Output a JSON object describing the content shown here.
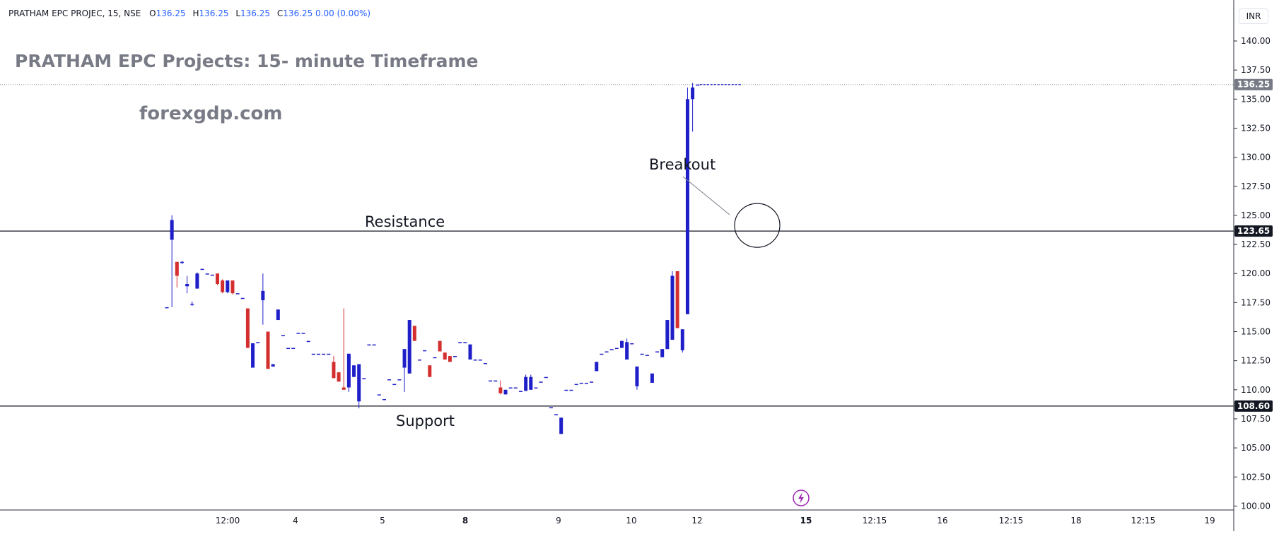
{
  "header": {
    "symbol": "PRATHAM EPC PROJEC, 15, NSE",
    "o_label": "O",
    "o_value": "136.25",
    "h_label": "H",
    "h_value": "136.25",
    "l_label": "L",
    "l_value": "136.25",
    "c_label": "C",
    "c_value": "136.25 0.00 (0.00%)"
  },
  "currency": "INR",
  "title": "PRATHAM EPC Projects: 15- minute Timeframe",
  "watermark": "forexgdp.com",
  "annotations": {
    "resistance": "Resistance",
    "support": "Support",
    "breakout": "Breakout"
  },
  "colors": {
    "up": "#1f1fc9",
    "down": "#d32f2f",
    "resistance_line": "#131722",
    "badge_bg": "#131722",
    "last_badge_bg": "#787b86",
    "circle": "#131722",
    "lightning": "#9c27b0"
  },
  "chart_data": {
    "type": "candlestick",
    "y_axis_ticks": [
      "140.00",
      "137.50",
      "135.00",
      "132.50",
      "130.00",
      "127.50",
      "125.00",
      "122.50",
      "120.00",
      "117.50",
      "115.00",
      "112.50",
      "110.00",
      "107.50",
      "105.00",
      "102.50",
      "100.00"
    ],
    "ylim": [
      100,
      141.5
    ],
    "x_axis_ticks": [
      "12:00",
      "4",
      "5",
      "8",
      "9",
      "10",
      "12",
      "15",
      "12:15",
      "16",
      "12:15",
      "18",
      "12:15",
      "19"
    ],
    "x_axis_bold": [
      "8",
      "15"
    ],
    "levels": {
      "resistance": 123.65,
      "support": 108.6,
      "last": 136.25
    },
    "price_badges": [
      "123.65",
      "108.60",
      "136.25"
    ],
    "candles": [
      [
        117.1,
        117.1,
        117.1,
        117.1
      ],
      [
        122.9,
        125.0,
        117.1,
        124.6
      ],
      [
        121.0,
        121.0,
        118.8,
        119.8
      ],
      [
        121.0,
        121.1,
        120.8,
        121.0
      ],
      [
        118.9,
        119.8,
        118.3,
        119.1
      ],
      [
        117.4,
        117.6,
        117.2,
        117.4
      ],
      [
        118.7,
        120.1,
        118.7,
        120.0
      ],
      [
        120.4,
        120.4,
        120.4,
        120.4
      ],
      [
        120.0,
        120.0,
        120.0,
        120.0
      ],
      [
        119.9,
        119.9,
        119.9,
        119.9
      ],
      [
        120.0,
        120.0,
        119.0,
        119.1
      ],
      [
        119.4,
        119.5,
        118.3,
        118.4
      ],
      [
        118.4,
        119.4,
        118.3,
        119.4
      ],
      [
        119.4,
        119.4,
        118.2,
        118.3
      ],
      [
        118.3,
        118.3,
        118.3,
        118.3
      ],
      [
        117.9,
        117.9,
        117.9,
        117.9
      ],
      [
        117.0,
        117.0,
        113.6,
        113.6
      ],
      [
        111.9,
        114.0,
        111.9,
        114.0
      ],
      [
        114.1,
        114.1,
        114.1,
        114.1
      ],
      [
        117.7,
        120.0,
        115.6,
        118.5
      ],
      [
        115.0,
        115.0,
        111.8,
        111.8
      ],
      [
        112.0,
        112.2,
        112.0,
        112.2
      ],
      [
        116.0,
        116.9,
        116.0,
        116.9
      ],
      [
        114.7,
        114.7,
        114.7,
        114.7
      ],
      [
        113.6,
        113.6,
        113.6,
        113.6
      ],
      [
        113.6,
        113.6,
        113.6,
        113.6
      ],
      [
        114.9,
        114.9,
        114.9,
        114.9
      ],
      [
        114.9,
        114.9,
        114.9,
        114.9
      ],
      [
        114.2,
        114.2,
        114.2,
        114.2
      ],
      [
        113.1,
        113.1,
        113.1,
        113.1
      ],
      [
        113.1,
        113.1,
        113.1,
        113.1
      ],
      [
        113.1,
        113.1,
        113.1,
        113.1
      ],
      [
        113.1,
        113.1,
        113.1,
        113.1
      ],
      [
        112.4,
        112.9,
        111.0,
        111.0
      ],
      [
        111.5,
        111.5,
        110.7,
        110.7
      ],
      [
        110.2,
        117.0,
        110.0,
        110.0
      ],
      [
        110.2,
        113.1,
        109.8,
        113.1
      ],
      [
        111.1,
        112.1,
        111.1,
        112.1
      ],
      [
        109.0,
        112.2,
        108.4,
        112.2
      ],
      [
        111.0,
        111.0,
        111.0,
        111.0
      ],
      [
        113.9,
        113.9,
        113.9,
        113.9
      ],
      [
        113.9,
        113.9,
        113.9,
        113.9
      ],
      [
        109.6,
        109.6,
        109.6,
        109.6
      ],
      [
        109.2,
        109.2,
        109.2,
        109.2
      ],
      [
        110.9,
        110.9,
        110.9,
        110.9
      ],
      [
        110.5,
        110.5,
        110.5,
        110.5
      ],
      [
        110.9,
        110.9,
        110.9,
        110.9
      ],
      [
        111.9,
        113.5,
        109.8,
        113.5
      ],
      [
        111.4,
        116.0,
        111.4,
        116.0
      ],
      [
        115.5,
        115.5,
        114.2,
        114.2
      ],
      [
        112.6,
        112.6,
        112.6,
        112.6
      ],
      [
        113.4,
        113.4,
        113.4,
        113.4
      ],
      [
        112.1,
        112.1,
        111.1,
        111.1
      ],
      [
        112.8,
        112.8,
        112.8,
        112.8
      ],
      [
        114.2,
        114.2,
        113.3,
        113.3
      ],
      [
        113.2,
        113.2,
        112.6,
        112.6
      ],
      [
        112.9,
        112.9,
        112.4,
        112.4
      ],
      [
        112.9,
        112.9,
        112.9,
        112.9
      ],
      [
        114.1,
        114.1,
        114.1,
        114.1
      ],
      [
        114.1,
        114.1,
        114.1,
        114.1
      ],
      [
        112.6,
        113.9,
        112.6,
        113.9
      ],
      [
        112.6,
        112.6,
        112.6,
        112.6
      ],
      [
        112.6,
        112.6,
        112.6,
        112.6
      ],
      [
        112.3,
        112.3,
        112.3,
        112.3
      ],
      [
        110.8,
        110.8,
        110.8,
        110.8
      ],
      [
        110.8,
        110.8,
        110.8,
        110.8
      ],
      [
        110.2,
        110.8,
        109.6,
        109.7
      ],
      [
        109.6,
        110.0,
        109.6,
        110.0
      ],
      [
        110.2,
        110.2,
        110.2,
        110.2
      ],
      [
        110.2,
        110.2,
        110.2,
        110.2
      ],
      [
        109.9,
        109.9,
        109.9,
        109.9
      ],
      [
        109.9,
        111.3,
        109.9,
        111.1
      ],
      [
        110.0,
        111.3,
        110.0,
        111.1
      ],
      [
        110.2,
        110.2,
        110.2,
        110.2
      ],
      [
        110.7,
        110.7,
        110.7,
        110.7
      ],
      [
        111.1,
        111.1,
        111.1,
        111.1
      ],
      [
        108.5,
        108.5,
        108.5,
        108.5
      ],
      [
        107.9,
        107.9,
        107.9,
        107.9
      ],
      [
        106.2,
        107.6,
        106.2,
        107.6
      ],
      [
        110.0,
        110.0,
        110.0,
        110.0
      ],
      [
        110.0,
        110.0,
        110.0,
        110.0
      ],
      [
        110.5,
        110.5,
        110.5,
        110.5
      ],
      [
        110.6,
        110.6,
        110.6,
        110.6
      ],
      [
        110.6,
        110.6,
        110.6,
        110.6
      ],
      [
        110.7,
        110.7,
        110.7,
        110.7
      ],
      [
        111.6,
        112.4,
        111.6,
        112.4
      ],
      [
        113.1,
        113.1,
        113.1,
        113.1
      ],
      [
        113.3,
        113.3,
        113.3,
        113.3
      ],
      [
        113.5,
        113.5,
        113.5,
        113.5
      ],
      [
        113.6,
        113.6,
        113.6,
        113.6
      ],
      [
        113.6,
        114.2,
        113.6,
        114.2
      ],
      [
        112.6,
        114.4,
        112.6,
        114.1
      ],
      [
        114.0,
        114.0,
        114.0,
        114.0
      ],
      [
        110.3,
        112.0,
        110.0,
        112.0
      ],
      [
        113.1,
        113.1,
        113.1,
        113.1
      ],
      [
        113.0,
        113.0,
        113.0,
        113.0
      ],
      [
        110.6,
        111.4,
        110.6,
        111.4
      ],
      [
        113.3,
        113.3,
        113.3,
        113.3
      ],
      [
        112.8,
        113.5,
        112.8,
        113.5
      ],
      [
        113.5,
        116.0,
        113.5,
        116.0
      ],
      [
        114.3,
        120.2,
        114.3,
        119.8
      ],
      [
        120.2,
        120.2,
        115.3,
        115.3
      ],
      [
        113.4,
        115.2,
        113.2,
        115.2
      ],
      [
        116.5,
        136.0,
        116.5,
        135.0
      ],
      [
        135.0,
        136.4,
        132.2,
        136.0
      ],
      [
        136.25,
        136.25,
        136.25,
        136.25
      ]
    ]
  }
}
